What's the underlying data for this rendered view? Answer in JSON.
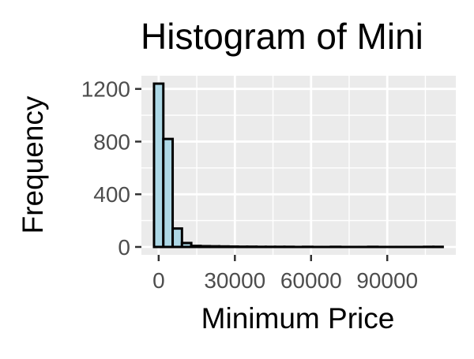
{
  "chart_data": {
    "type": "bar",
    "title": "Histogram of Mini",
    "xlabel": "Minimum Price",
    "ylabel": "Frequency",
    "x_ticks": [
      0,
      30000,
      60000,
      90000
    ],
    "x_tick_labels": [
      "0",
      "30000",
      "60000",
      "90000"
    ],
    "y_ticks": [
      0,
      400,
      800,
      1200
    ],
    "y_tick_labels": [
      "0",
      "400",
      "800",
      "1200"
    ],
    "xlim": [
      -6800,
      117000
    ],
    "ylim": [
      -60,
      1300
    ],
    "grid": true,
    "background_color": "#ebebeb",
    "bar_fill_color": "#add8e6",
    "bar_stroke_color": "#000000",
    "series": [
      {
        "bins": [
          {
            "x0": -1833,
            "x1": 1833,
            "value": 1240
          },
          {
            "x0": 1833,
            "x1": 5500,
            "value": 820
          },
          {
            "x0": 5500,
            "x1": 9167,
            "value": 140
          },
          {
            "x0": 9167,
            "x1": 12833,
            "value": 30
          },
          {
            "x0": 12833,
            "x1": 16500,
            "value": 8
          },
          {
            "x0": 16500,
            "x1": 20167,
            "value": 6
          },
          {
            "x0": 20167,
            "x1": 23833,
            "value": 5
          },
          {
            "x0": 23833,
            "x1": 27500,
            "value": 4
          },
          {
            "x0": 27500,
            "x1": 31167,
            "value": 3
          },
          {
            "x0": 31167,
            "x1": 34833,
            "value": 2
          },
          {
            "x0": 34833,
            "x1": 38500,
            "value": 2
          },
          {
            "x0": 38500,
            "x1": 42167,
            "value": 1
          },
          {
            "x0": 42167,
            "x1": 45833,
            "value": 1
          },
          {
            "x0": 45833,
            "x1": 49500,
            "value": 1
          },
          {
            "x0": 49500,
            "x1": 53167,
            "value": 1
          },
          {
            "x0": 53167,
            "x1": 56833,
            "value": 0
          },
          {
            "x0": 56833,
            "x1": 60500,
            "value": 1
          },
          {
            "x0": 60500,
            "x1": 64167,
            "value": 0
          },
          {
            "x0": 64167,
            "x1": 67833,
            "value": 0
          },
          {
            "x0": 67833,
            "x1": 71500,
            "value": 1
          },
          {
            "x0": 71500,
            "x1": 75167,
            "value": 0
          },
          {
            "x0": 75167,
            "x1": 78833,
            "value": 0
          },
          {
            "x0": 78833,
            "x1": 82500,
            "value": 0
          },
          {
            "x0": 82500,
            "x1": 86167,
            "value": 1
          },
          {
            "x0": 86167,
            "x1": 89833,
            "value": 0
          },
          {
            "x0": 89833,
            "x1": 93500,
            "value": 0
          },
          {
            "x0": 93500,
            "x1": 97167,
            "value": 0
          },
          {
            "x0": 97167,
            "x1": 100833,
            "value": 0
          },
          {
            "x0": 100833,
            "x1": 104500,
            "value": 0
          },
          {
            "x0": 104500,
            "x1": 108167,
            "value": 1
          },
          {
            "x0": 108167,
            "x1": 111833,
            "value": 1
          }
        ]
      }
    ]
  }
}
